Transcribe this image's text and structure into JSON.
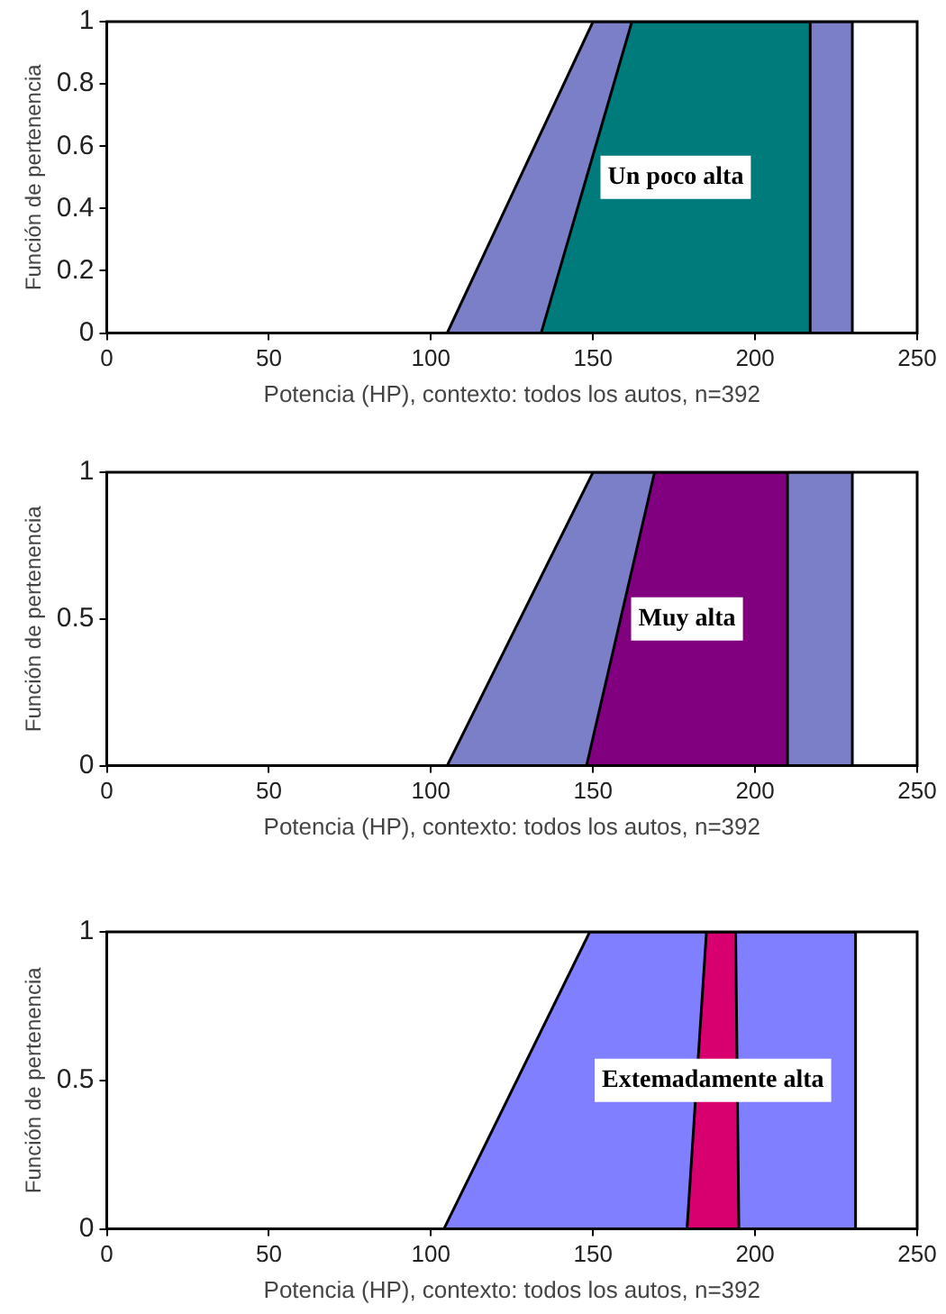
{
  "chart_data": [
    {
      "type": "area",
      "xlabel": "Potencia (HP), contexto: todos los autos, n=392",
      "ylabel": "Función de pertenencia",
      "xlim": [
        0,
        250
      ],
      "xticks": [
        0,
        50,
        100,
        150,
        200,
        250
      ],
      "ylim": [
        0,
        1
      ],
      "yticks": [
        0,
        0.2,
        0.4,
        0.6,
        0.8,
        1
      ],
      "grid": false,
      "legend": false,
      "marker": "none",
      "series": [
        {
          "color": "#7b7fc8",
          "x": [
            105,
            150,
            230,
            230
          ],
          "values": [
            0,
            1,
            1,
            0
          ]
        },
        {
          "color": "#007b7b",
          "x": [
            134,
            162,
            217,
            217
          ],
          "values": [
            0,
            1,
            1,
            0
          ]
        }
      ],
      "annotations": [
        "Un poco alta"
      ]
    },
    {
      "type": "area",
      "xlabel": "Potencia (HP), contexto: todos los autos, n=392",
      "ylabel": "Función de pertenencia",
      "xlim": [
        0,
        250
      ],
      "xticks": [
        0,
        50,
        100,
        150,
        200,
        250
      ],
      "ylim": [
        0,
        1
      ],
      "yticks": [
        0,
        0.5,
        1
      ],
      "grid": false,
      "legend": false,
      "marker": "none",
      "series": [
        {
          "color": "#7b7fc8",
          "x": [
            105,
            150,
            230,
            230
          ],
          "values": [
            0,
            1,
            1,
            0
          ]
        },
        {
          "color": "#800080",
          "x": [
            148,
            169,
            210,
            210
          ],
          "values": [
            0,
            1,
            1,
            0
          ]
        }
      ],
      "annotations": [
        "Muy alta"
      ]
    },
    {
      "type": "area",
      "xlabel": "Potencia (HP), contexto: todos los autos, n=392",
      "ylabel": "Función de pertenencia",
      "xlim": [
        0,
        250
      ],
      "xticks": [
        0,
        50,
        100,
        150,
        200,
        250
      ],
      "ylim": [
        0,
        1
      ],
      "yticks": [
        0,
        0.5,
        1
      ],
      "grid": false,
      "legend": false,
      "marker": "none",
      "series": [
        {
          "color": "#7f7fff",
          "x": [
            104,
            149,
            231,
            231
          ],
          "values": [
            0,
            1,
            1,
            0
          ]
        },
        {
          "color": "#d8006e",
          "x": [
            179,
            185,
            194,
            195
          ],
          "values": [
            0,
            1,
            1,
            0
          ]
        }
      ],
      "annotations": [
        "Extemadamente alta"
      ]
    }
  ]
}
